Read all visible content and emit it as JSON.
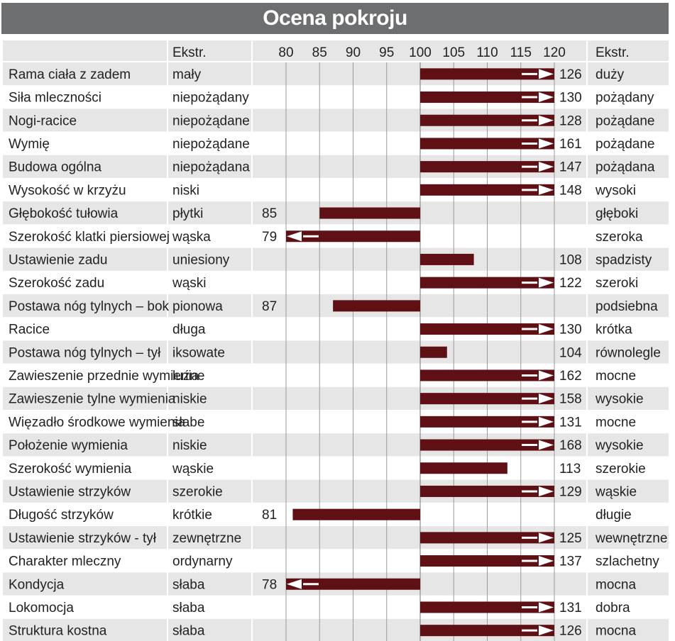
{
  "title": "Ocena pokroju",
  "header": {
    "ekstr_left": "Ekstr.",
    "ekstr_right": "Ekstr."
  },
  "colors": {
    "bar": "#5e1015",
    "row_shade": "#e6e6e7",
    "header_bg": "#e6e6e7",
    "title_bg": "#6d6e70",
    "gridline": "#9a9a9a"
  },
  "chart_data": {
    "type": "bar",
    "orientation": "horizontal",
    "baseline": 100,
    "xlim": [
      80,
      120
    ],
    "xticks": [
      80,
      85,
      90,
      95,
      100,
      105,
      110,
      115,
      120
    ],
    "grid": true,
    "rows": [
      {
        "trait": "Rama ciała z zadem",
        "left": "mały",
        "right": "duży",
        "value": 126
      },
      {
        "trait": "Siła mleczności",
        "left": "niepożądany",
        "right": "pożądany",
        "value": 130
      },
      {
        "trait": "Nogi-racice",
        "left": "niepożądane",
        "right": "pożądane",
        "value": 128
      },
      {
        "trait": "Wymię",
        "left": "niepożądane",
        "right": "pożądane",
        "value": 161
      },
      {
        "trait": "Budowa ogólna",
        "left": "niepożądana",
        "right": "pożądana",
        "value": 147
      },
      {
        "trait": "Wysokość w krzyżu",
        "left": "niski",
        "right": "wysoki",
        "value": 148
      },
      {
        "trait": "Głębokość tułowia",
        "left": "płytki",
        "right": "głęboki",
        "value": 85
      },
      {
        "trait": "Szerokość klatki piersiowej",
        "left": "wąska",
        "right": "szeroka",
        "value": 79
      },
      {
        "trait": "Ustawienie zadu",
        "left": "uniesiony",
        "right": "spadzisty",
        "value": 108
      },
      {
        "trait": "Szerokość zadu",
        "left": "wąski",
        "right": "szeroki",
        "value": 122
      },
      {
        "trait": "Postawa nóg tylnych –  bok",
        "left": "pionowa",
        "right": "podsiebna",
        "value": 87
      },
      {
        "trait": "Racice",
        "left": "długa",
        "right": "krótka",
        "value": 130
      },
      {
        "trait": "Postawa nóg tylnych –  tył",
        "left": "iksowate",
        "right": "równolegle",
        "value": 104
      },
      {
        "trait": "Zawieszenie przednie wymienia",
        "left": "luźne",
        "right": "mocne",
        "value": 162
      },
      {
        "trait": "Zawieszenie tylne wymienia",
        "left": "niskie",
        "right": "wysokie",
        "value": 158
      },
      {
        "trait": "Więzadło środkowe wymienia",
        "left": "słabe",
        "right": "mocne",
        "value": 131
      },
      {
        "trait": "Położenie wymienia",
        "left": "niskie",
        "right": "wysokie",
        "value": 168
      },
      {
        "trait": "Szerokość wymienia",
        "left": "wąskie",
        "right": "szerokie",
        "value": 113
      },
      {
        "trait": "Ustawienie strzyków",
        "left": "szerokie",
        "right": "wąskie",
        "value": 129
      },
      {
        "trait": "Długość strzyków",
        "left": "krótkie",
        "right": "długie",
        "value": 81
      },
      {
        "trait": "Ustawienie strzyków - tył",
        "left": "zewnętrzne",
        "right": "wewnętrzne",
        "value": 125
      },
      {
        "trait": "Charakter mleczny",
        "left": "ordynarny",
        "right": "szlachetny",
        "value": 137
      },
      {
        "trait": "Kondycja",
        "left": "słaba",
        "right": "mocna",
        "value": 78
      },
      {
        "trait": "Lokomocja",
        "left": "słaba",
        "right": "dobra",
        "value": 131
      },
      {
        "trait": "Struktura kostna",
        "left": "słaba",
        "right": "mocna",
        "value": 126
      }
    ]
  }
}
